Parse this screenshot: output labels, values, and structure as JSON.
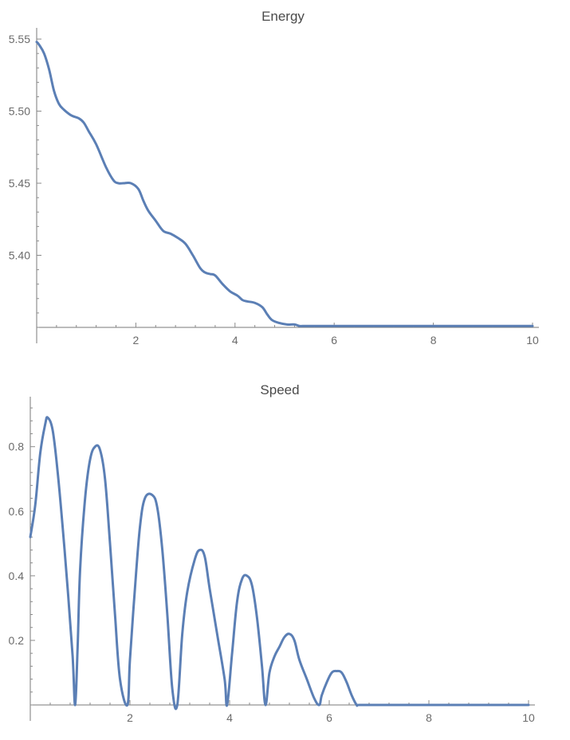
{
  "chart_data": [
    {
      "type": "line",
      "title": "Energy",
      "xlabel": "",
      "ylabel": "",
      "xlim": [
        0,
        10
      ],
      "ylim": [
        5.35,
        5.555
      ],
      "x_ticks": [
        2,
        4,
        6,
        8,
        10
      ],
      "y_ticks": [
        5.4,
        5.45,
        5.5,
        5.55
      ],
      "x_tick_labels": [
        "2",
        "4",
        "6",
        "8",
        "10"
      ],
      "y_tick_labels": [
        "5.40",
        "5.45",
        "5.50",
        "5.55"
      ],
      "color": "#5b7fb5",
      "series": [
        {
          "x": [
            0,
            0.05,
            0.15,
            0.25,
            0.35,
            0.45,
            0.55,
            0.7,
            0.85,
            0.95,
            1.05,
            1.2,
            1.4,
            1.55,
            1.65,
            1.75,
            1.9,
            2.05,
            2.15,
            2.25,
            2.4,
            2.55,
            2.7,
            2.85,
            3.0,
            3.15,
            3.3,
            3.4,
            3.5,
            3.6,
            3.75,
            3.9,
            4.05,
            4.15,
            4.25,
            4.4,
            4.55,
            4.65,
            4.75,
            4.9,
            5.05,
            5.2,
            5.3,
            5.4,
            5.5,
            5.6,
            5.75,
            5.9,
            6.05,
            6.2,
            6.35,
            6.5,
            6.6,
            6.8,
            7.5,
            8.5,
            9.5,
            10
          ],
          "y": [
            5.548,
            5.546,
            5.54,
            5.529,
            5.514,
            5.505,
            5.501,
            5.497,
            5.495,
            5.492,
            5.486,
            5.477,
            5.461,
            5.452,
            5.45,
            5.45,
            5.45,
            5.446,
            5.438,
            5.431,
            5.424,
            5.417,
            5.415,
            5.412,
            5.408,
            5.4,
            5.391,
            5.388,
            5.387,
            5.386,
            5.38,
            5.375,
            5.372,
            5.369,
            5.368,
            5.367,
            5.364,
            5.359,
            5.355,
            5.353,
            5.352,
            5.352,
            5.351,
            5.351,
            5.351,
            5.351,
            5.351,
            5.351,
            5.351,
            5.351,
            5.351,
            5.351,
            5.351,
            5.351,
            5.351,
            5.351,
            5.351,
            5.351
          ]
        }
      ]
    },
    {
      "type": "line",
      "title": "Speed",
      "xlabel": "",
      "ylabel": "",
      "xlim": [
        0,
        10
      ],
      "ylim": [
        0,
        0.94
      ],
      "x_ticks": [
        2,
        4,
        6,
        8,
        10
      ],
      "y_ticks": [
        0.2,
        0.4,
        0.6,
        0.8
      ],
      "x_tick_labels": [
        "2",
        "4",
        "6",
        "8",
        "10"
      ],
      "y_tick_labels": [
        "0.2",
        "0.4",
        "0.6",
        "0.8"
      ],
      "color": "#5b7fb5",
      "series": [
        {
          "x": [
            0,
            0.1,
            0.2,
            0.3,
            0.35,
            0.45,
            0.55,
            0.65,
            0.75,
            0.85,
            0.9,
            0.95,
            1.0,
            1.1,
            1.2,
            1.3,
            1.4,
            1.5,
            1.6,
            1.7,
            1.8,
            1.95,
            2.0,
            2.1,
            2.2,
            2.3,
            2.45,
            2.55,
            2.65,
            2.75,
            2.85,
            2.95,
            3.05,
            3.15,
            3.3,
            3.4,
            3.5,
            3.6,
            3.75,
            3.9,
            3.95,
            4.05,
            4.15,
            4.25,
            4.35,
            4.45,
            4.55,
            4.65,
            4.72,
            4.8,
            4.9,
            5.0,
            5.1,
            5.2,
            5.3,
            5.4,
            5.55,
            5.7,
            5.8,
            5.85,
            5.95,
            6.05,
            6.15,
            6.25,
            6.35,
            6.45,
            6.55,
            6.6,
            7.0,
            8.0,
            9.0,
            10.0
          ],
          "y": [
            0.52,
            0.62,
            0.78,
            0.87,
            0.89,
            0.85,
            0.72,
            0.55,
            0.36,
            0.15,
            0.0,
            0.18,
            0.42,
            0.64,
            0.76,
            0.8,
            0.79,
            0.7,
            0.5,
            0.28,
            0.08,
            0.0,
            0.14,
            0.36,
            0.55,
            0.64,
            0.65,
            0.61,
            0.48,
            0.28,
            0.05,
            0.0,
            0.22,
            0.35,
            0.45,
            0.48,
            0.46,
            0.36,
            0.22,
            0.08,
            0.0,
            0.16,
            0.32,
            0.39,
            0.4,
            0.37,
            0.27,
            0.12,
            0.0,
            0.1,
            0.15,
            0.18,
            0.21,
            0.22,
            0.2,
            0.14,
            0.08,
            0.02,
            0.0,
            0.03,
            0.07,
            0.1,
            0.105,
            0.1,
            0.07,
            0.03,
            0.0,
            0.0,
            0.0,
            0.0,
            0.0,
            0.0
          ]
        }
      ]
    }
  ]
}
